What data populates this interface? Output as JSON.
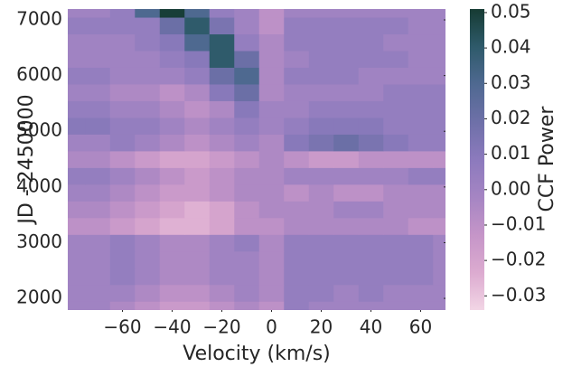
{
  "chart_data": {
    "type": "heatmap",
    "xlabel": "Velocity (km/s)",
    "ylabel": "JD - 2450000",
    "colorbar_label": "CCF Power",
    "x": [
      -80,
      -70,
      -60,
      -50,
      -40,
      -30,
      -20,
      -10,
      0,
      10,
      20,
      30,
      40,
      50,
      60,
      70
    ],
    "y": [
      1800,
      2100,
      2400,
      2700,
      3000,
      3300,
      3600,
      3900,
      4200,
      4500,
      4800,
      5100,
      5400,
      5700,
      6000,
      6300,
      6600,
      6900,
      7200
    ],
    "z": [
      [
        0.0,
        0.0,
        -0.005,
        -0.01,
        -0.015,
        -0.015,
        -0.01,
        -0.005,
        -0.01,
        0.005,
        0.0,
        0.0,
        0.0,
        0.0,
        0.0,
        0.0
      ],
      [
        0.0,
        0.0,
        0.0,
        -0.005,
        -0.01,
        -0.01,
        -0.005,
        0.0,
        -0.005,
        0.005,
        0.005,
        0.0,
        0.005,
        0.0,
        0.0,
        0.0
      ],
      [
        0.0,
        0.0,
        0.005,
        0.0,
        -0.005,
        -0.005,
        0.0,
        0.0,
        -0.005,
        0.005,
        0.005,
        0.005,
        0.005,
        0.005,
        0.005,
        0.0
      ],
      [
        0.0,
        0.0,
        0.005,
        0.0,
        -0.005,
        -0.005,
        0.0,
        0.0,
        -0.005,
        0.005,
        0.005,
        0.005,
        0.005,
        0.005,
        0.005,
        0.0
      ],
      [
        0.0,
        0.0,
        0.005,
        0.0,
        -0.005,
        -0.005,
        0.0,
        0.005,
        -0.005,
        0.005,
        0.005,
        0.005,
        0.005,
        0.005,
        0.005,
        0.0
      ],
      [
        -0.01,
        -0.01,
        -0.015,
        -0.02,
        -0.025,
        -0.025,
        -0.02,
        -0.01,
        -0.01,
        -0.005,
        -0.005,
        -0.005,
        -0.005,
        -0.005,
        -0.01,
        -0.01
      ],
      [
        -0.005,
        -0.005,
        -0.01,
        -0.015,
        -0.02,
        -0.025,
        -0.02,
        -0.01,
        -0.005,
        -0.005,
        -0.005,
        0.0,
        0.0,
        -0.005,
        -0.005,
        -0.005
      ],
      [
        0.0,
        0.0,
        -0.005,
        -0.01,
        -0.015,
        -0.015,
        -0.01,
        -0.005,
        -0.005,
        -0.01,
        -0.005,
        -0.01,
        -0.01,
        -0.005,
        -0.005,
        -0.005
      ],
      [
        0.005,
        0.005,
        0.0,
        -0.005,
        -0.01,
        -0.015,
        -0.01,
        -0.005,
        -0.005,
        0.0,
        0.0,
        0.0,
        0.0,
        0.0,
        0.005,
        0.005
      ],
      [
        -0.005,
        -0.005,
        -0.01,
        -0.015,
        -0.02,
        -0.02,
        -0.015,
        -0.01,
        -0.005,
        -0.01,
        -0.015,
        -0.015,
        -0.01,
        -0.01,
        -0.01,
        -0.01
      ],
      [
        0.0,
        0.0,
        0.005,
        0.0,
        -0.005,
        -0.01,
        -0.005,
        0.0,
        -0.005,
        0.01,
        0.015,
        0.02,
        0.015,
        0.01,
        0.005,
        0.005
      ],
      [
        0.01,
        0.01,
        0.005,
        0.005,
        0.0,
        -0.005,
        0.0,
        0.005,
        0.0,
        0.005,
        0.01,
        0.01,
        0.01,
        0.005,
        0.005,
        0.005
      ],
      [
        0.005,
        0.005,
        0.0,
        0.0,
        -0.005,
        -0.01,
        -0.005,
        0.01,
        0.0,
        0.0,
        0.005,
        0.005,
        0.005,
        0.005,
        0.005,
        0.005
      ],
      [
        0.0,
        0.0,
        -0.005,
        -0.005,
        -0.01,
        -0.005,
        0.01,
        0.02,
        -0.005,
        0.0,
        0.0,
        0.0,
        0.0,
        0.005,
        0.005,
        0.005
      ],
      [
        0.005,
        0.005,
        0.0,
        0.0,
        0.0,
        0.005,
        0.02,
        0.03,
        -0.005,
        0.005,
        0.005,
        0.005,
        0.0,
        0.0,
        0.0,
        0.0
      ],
      [
        0.0,
        0.0,
        0.0,
        0.0,
        0.005,
        0.01,
        0.04,
        0.02,
        -0.005,
        0.0,
        0.005,
        0.005,
        0.005,
        0.005,
        0.0,
        0.0
      ],
      [
        0.0,
        0.0,
        0.0,
        0.005,
        0.01,
        0.03,
        0.04,
        0.005,
        -0.005,
        0.005,
        0.005,
        0.005,
        0.005,
        0.0,
        0.0,
        0.0
      ],
      [
        0.005,
        0.005,
        0.005,
        0.005,
        0.02,
        0.04,
        0.015,
        0.0,
        -0.01,
        0.005,
        0.005,
        0.005,
        0.005,
        0.005,
        0.0,
        0.0
      ],
      [
        0.0,
        0.0,
        0.005,
        0.03,
        0.05,
        0.03,
        0.005,
        0.0,
        -0.01,
        0.0,
        0.0,
        0.0,
        0.0,
        0.0,
        0.0,
        0.0
      ]
    ],
    "xlim": [
      -82,
      70
    ],
    "ylim": [
      1790,
      7195
    ],
    "xticks": [
      {
        "value": -60,
        "label": "−60"
      },
      {
        "value": -40,
        "label": "−40"
      },
      {
        "value": -20,
        "label": "−20"
      },
      0,
      20,
      40,
      60
    ],
    "yticks": [
      2000,
      3000,
      4000,
      5000,
      6000,
      7000
    ],
    "clim": [
      -0.034,
      0.051
    ],
    "cticks": [
      {
        "value": -0.03,
        "label": "−0.03"
      },
      {
        "value": -0.02,
        "label": "−0.02"
      },
      {
        "value": -0.01,
        "label": "−0.01"
      },
      {
        "value": 0,
        "label": "0.00"
      },
      {
        "value": 0.01,
        "label": "0.01"
      },
      {
        "value": 0.02,
        "label": "0.02"
      },
      {
        "value": 0.03,
        "label": "0.03"
      },
      {
        "value": 0.04,
        "label": "0.04"
      },
      {
        "value": 0.05,
        "label": "0.05"
      }
    ],
    "colormap": [
      "#f2d5e5",
      "#dcabd0",
      "#c595c8",
      "#a585c3",
      "#8c7abd",
      "#6e70a8",
      "#4f6991",
      "#2e5a6a",
      "#163b33"
    ]
  }
}
